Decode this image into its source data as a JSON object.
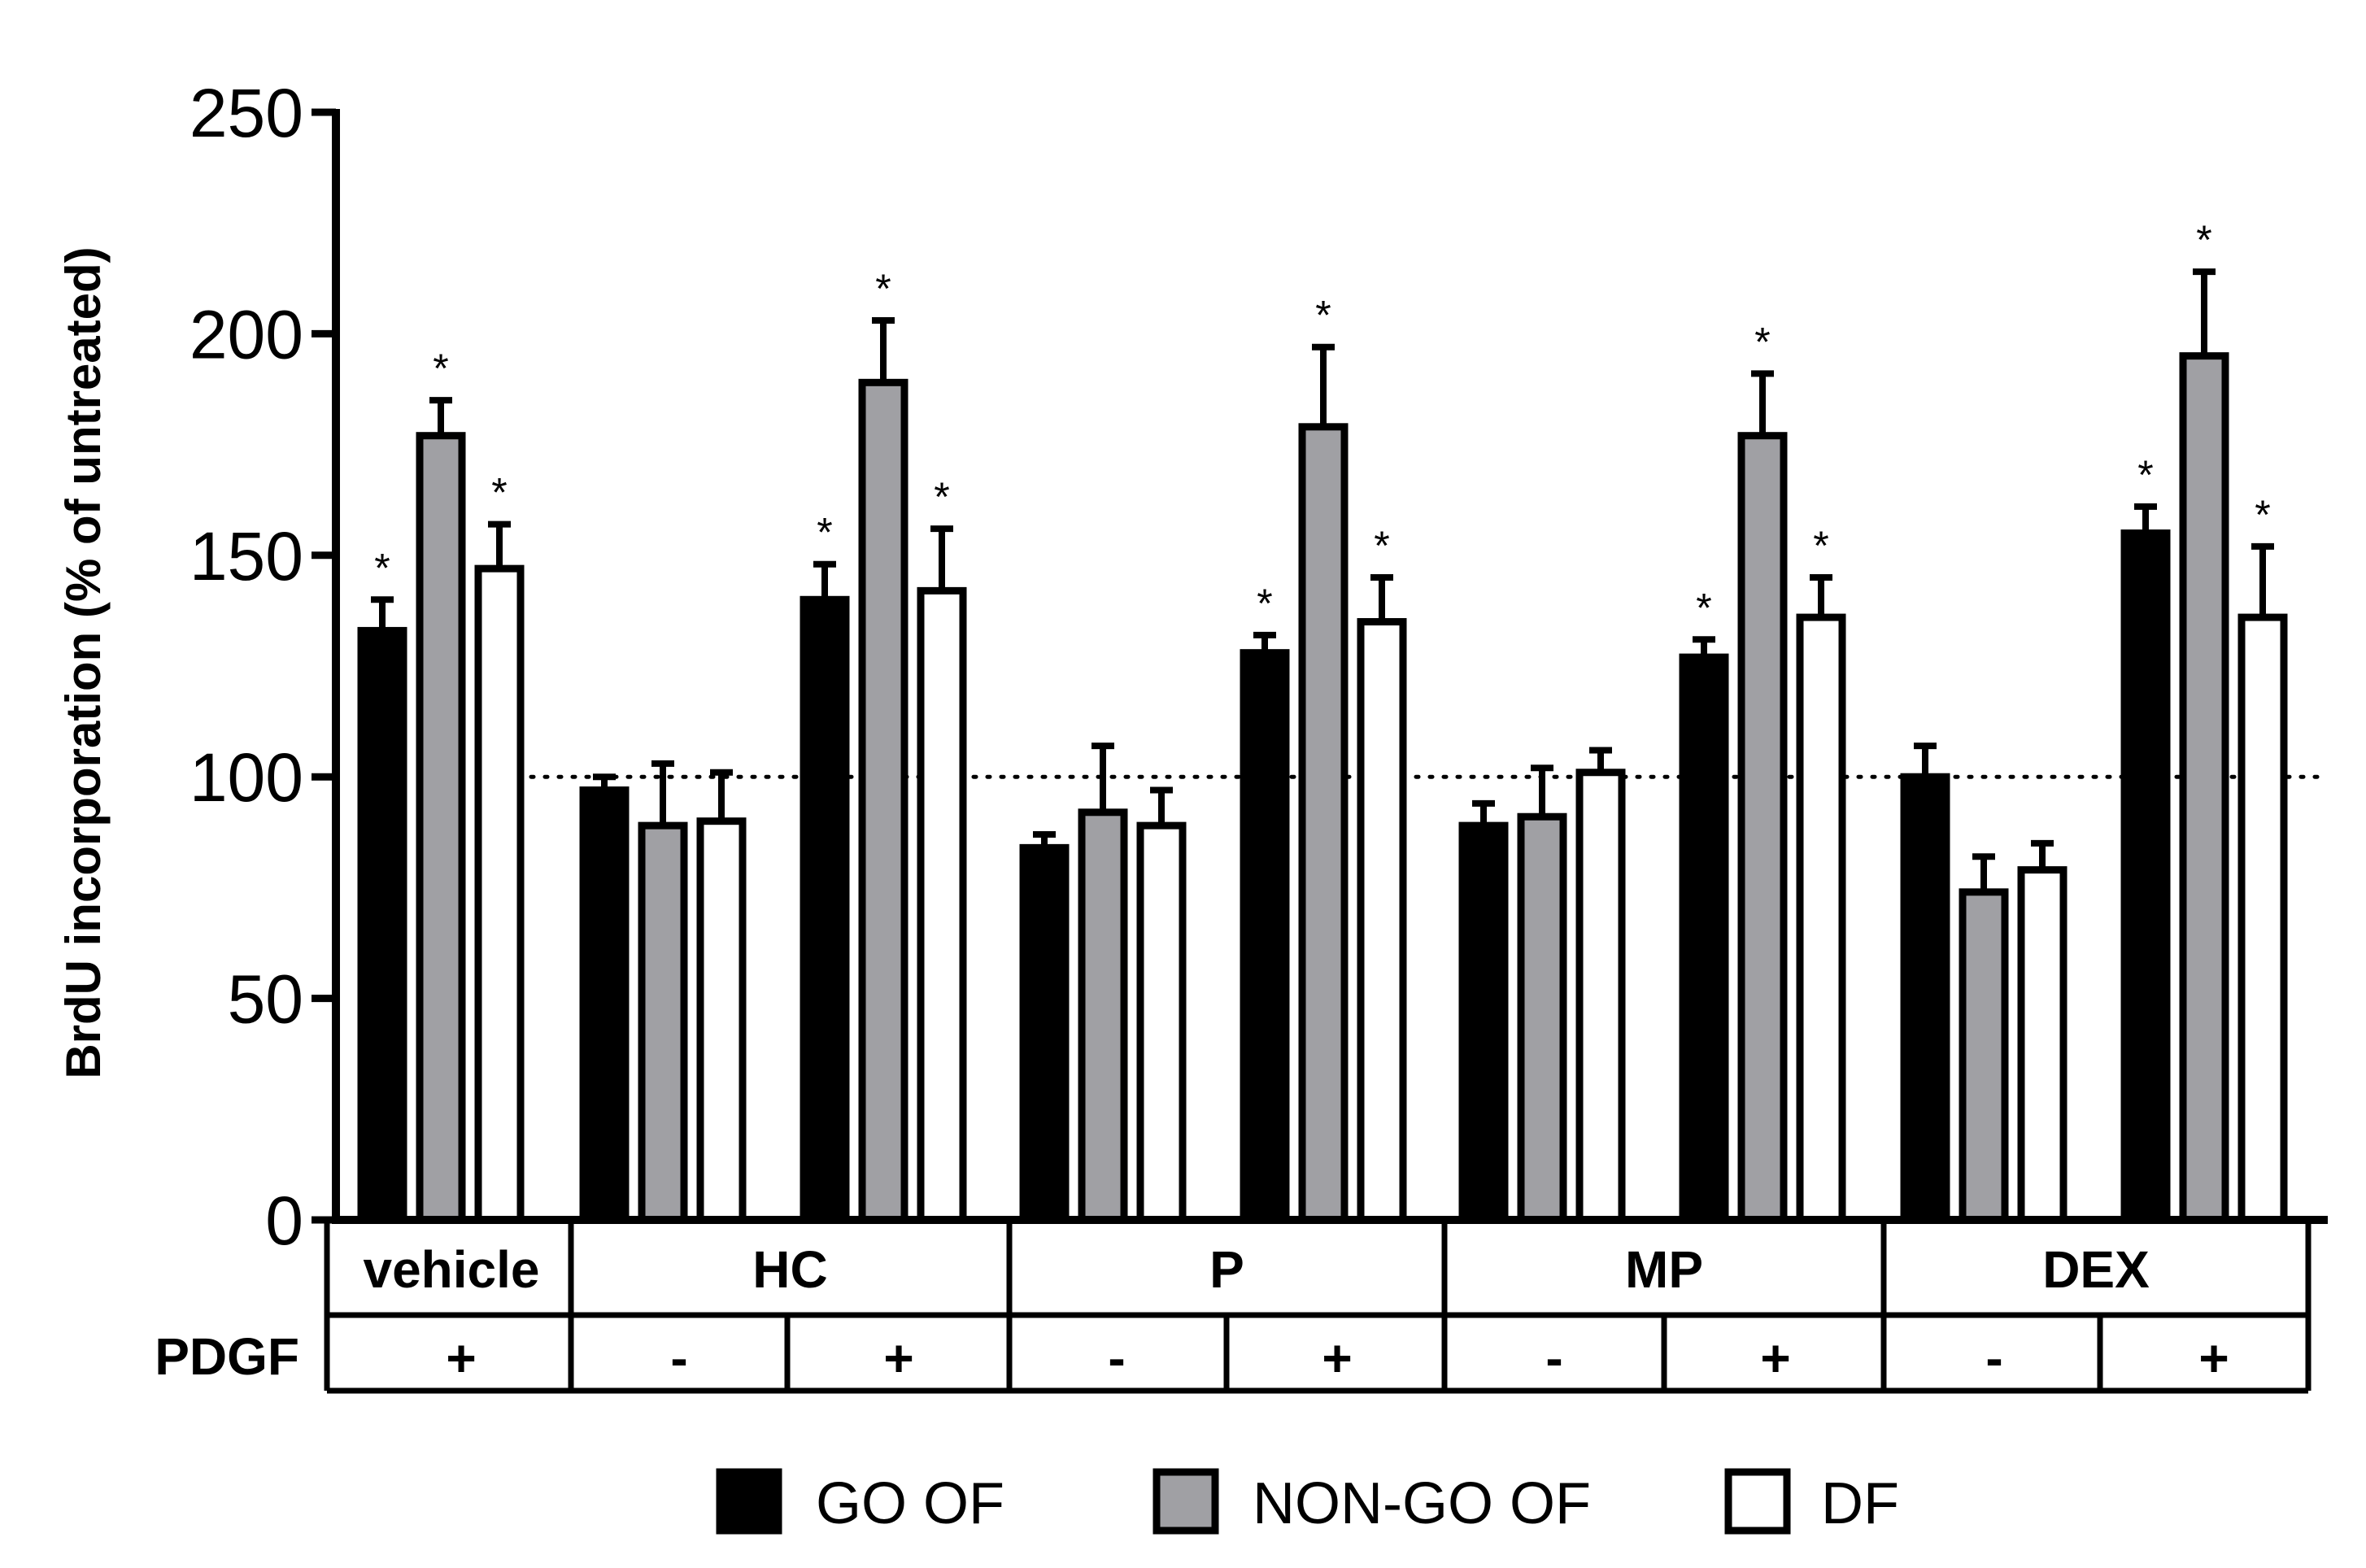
{
  "chart_data": {
    "type": "bar",
    "title": "",
    "ylabel": "BrdU incorporation (% of untreated)",
    "xlabel": "",
    "ylim": [
      0,
      250
    ],
    "yticks": [
      0,
      50,
      100,
      150,
      200,
      250
    ],
    "reference_line": 100,
    "treatments": [
      "vehicle",
      "HC",
      "P",
      "MP",
      "DEX"
    ],
    "pdgf_row_label": "PDGF",
    "categories": [
      {
        "treatment": "vehicle",
        "pdgf": "+"
      },
      {
        "treatment": "HC",
        "pdgf": "-"
      },
      {
        "treatment": "HC",
        "pdgf": "+"
      },
      {
        "treatment": "P",
        "pdgf": "-"
      },
      {
        "treatment": "P",
        "pdgf": "+"
      },
      {
        "treatment": "MP",
        "pdgf": "-"
      },
      {
        "treatment": "MP",
        "pdgf": "+"
      },
      {
        "treatment": "DEX",
        "pdgf": "-"
      },
      {
        "treatment": "DEX",
        "pdgf": "+"
      }
    ],
    "series": [
      {
        "name": "GO OF",
        "color": "#000000",
        "values": [
          133,
          97,
          140,
          84,
          128,
          89,
          127,
          100,
          155
        ],
        "errors": [
          7,
          3,
          8,
          3,
          4,
          5,
          4,
          7,
          6
        ],
        "significant": [
          true,
          false,
          true,
          false,
          true,
          false,
          true,
          false,
          true
        ]
      },
      {
        "name": "NON-GO OF",
        "color": "#a0a0a4",
        "values": [
          177,
          89,
          189,
          92,
          179,
          91,
          177,
          74,
          195
        ],
        "errors": [
          8,
          14,
          14,
          15,
          18,
          11,
          14,
          8,
          19
        ],
        "significant": [
          true,
          false,
          true,
          false,
          true,
          false,
          true,
          false,
          true
        ]
      },
      {
        "name": "DF",
        "color": "#ffffff",
        "values": [
          147,
          90,
          142,
          89,
          135,
          101,
          136,
          79,
          136
        ],
        "errors": [
          10,
          11,
          14,
          8,
          10,
          5,
          9,
          6,
          16
        ],
        "significant": [
          true,
          false,
          true,
          false,
          true,
          false,
          true,
          false,
          true
        ]
      }
    ],
    "significance_marker": "*",
    "legend_position": "bottom"
  }
}
